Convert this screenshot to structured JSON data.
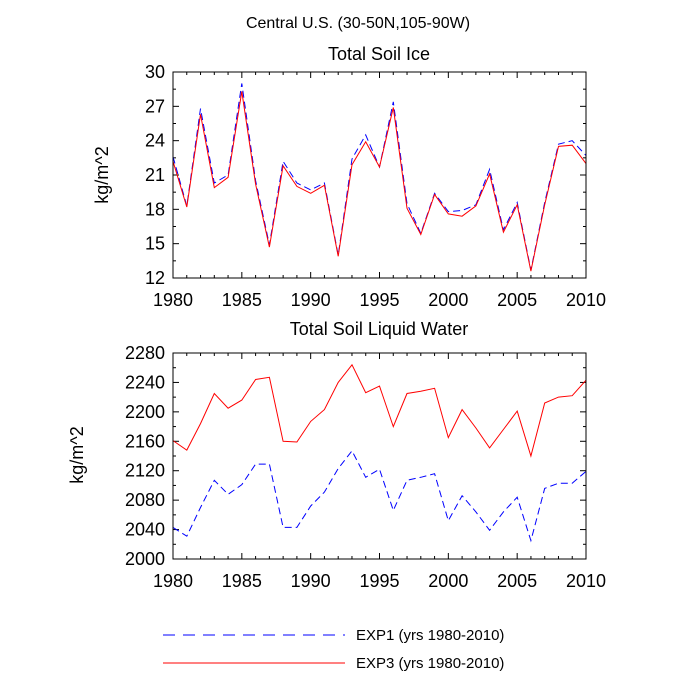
{
  "suptitle": "Central U.S. (30-50N,105-90W)",
  "legend": [
    {
      "label": "EXP1 (yrs 1980-2010)",
      "color": "#0000ff",
      "dash": "dashed"
    },
    {
      "label": "EXP3 (yrs 1980-2010)",
      "color": "#ff0000",
      "dash": "solid"
    }
  ],
  "chart_data": [
    {
      "type": "line",
      "title": "Total Soil Ice",
      "ylabel": "kg/m^2",
      "xlabel": "",
      "xlim": [
        1980,
        2010
      ],
      "ylim": [
        12,
        30
      ],
      "xticks": [
        1980,
        1985,
        1990,
        1995,
        2000,
        2005,
        2010
      ],
      "yticks": [
        12,
        15,
        18,
        21,
        24,
        27,
        30
      ],
      "x": [
        1980,
        1981,
        1982,
        1983,
        1984,
        1985,
        1986,
        1987,
        1988,
        1989,
        1990,
        1991,
        1992,
        1993,
        1994,
        1995,
        1996,
        1997,
        1998,
        1999,
        2000,
        2001,
        2002,
        2003,
        2004,
        2005,
        2006,
        2007,
        2008,
        2009,
        2010
      ],
      "series": [
        {
          "name": "EXP1 (yrs 1980-2010)",
          "color": "#0000ff",
          "dash": "dashed",
          "values": [
            22.6,
            18.3,
            26.8,
            20.3,
            21.0,
            29.0,
            20.5,
            14.9,
            22.2,
            20.3,
            19.7,
            20.3,
            14.0,
            22.4,
            24.5,
            21.7,
            27.4,
            18.5,
            15.9,
            19.4,
            17.8,
            17.9,
            18.4,
            21.5,
            16.2,
            18.6,
            12.7,
            18.6,
            23.7,
            24.0,
            22.7
          ]
        },
        {
          "name": "EXP3 (yrs 1980-2010)",
          "color": "#ff0000",
          "dash": "solid",
          "values": [
            22.2,
            18.2,
            26.3,
            19.9,
            20.8,
            28.3,
            20.2,
            14.7,
            21.8,
            20.0,
            19.4,
            20.1,
            13.9,
            21.9,
            23.9,
            21.7,
            26.9,
            18.1,
            15.8,
            19.3,
            17.6,
            17.4,
            18.3,
            21.1,
            16.0,
            18.4,
            12.6,
            18.4,
            23.5,
            23.6,
            22.0
          ]
        }
      ]
    },
    {
      "type": "line",
      "title": "Total Soil Liquid Water",
      "ylabel": "kg/m^2",
      "xlabel": "",
      "xlim": [
        1980,
        2010
      ],
      "ylim": [
        2000,
        2280
      ],
      "xticks": [
        1980,
        1985,
        1990,
        1995,
        2000,
        2005,
        2010
      ],
      "yticks": [
        2000,
        2040,
        2080,
        2120,
        2160,
        2200,
        2240,
        2280
      ],
      "x": [
        1980,
        1981,
        1982,
        1983,
        1984,
        1985,
        1986,
        1987,
        1988,
        1989,
        1990,
        1991,
        1992,
        1993,
        1994,
        1995,
        1996,
        1997,
        1998,
        1999,
        2000,
        2001,
        2002,
        2003,
        2004,
        2005,
        2006,
        2007,
        2008,
        2009,
        2010
      ],
      "series": [
        {
          "name": "EXP1 (yrs 1980-2010)",
          "color": "#0000ff",
          "dash": "dashed",
          "values": [
            2043,
            2031,
            2070,
            2107,
            2088,
            2101,
            2129,
            2129,
            2043,
            2043,
            2072,
            2091,
            2123,
            2147,
            2111,
            2122,
            2066,
            2107,
            2111,
            2116,
            2052,
            2086,
            2064,
            2039,
            2064,
            2084,
            2025,
            2096,
            2103,
            2103,
            2119
          ]
        },
        {
          "name": "EXP3 (yrs 1980-2010)",
          "color": "#ff0000",
          "dash": "solid",
          "values": [
            2161,
            2148,
            2184,
            2225,
            2205,
            2216,
            2244,
            2247,
            2160,
            2159,
            2187,
            2203,
            2240,
            2264,
            2226,
            2235,
            2180,
            2225,
            2228,
            2232,
            2165,
            2203,
            2178,
            2151,
            2176,
            2201,
            2140,
            2212,
            2220,
            2222,
            2243
          ]
        }
      ]
    }
  ]
}
